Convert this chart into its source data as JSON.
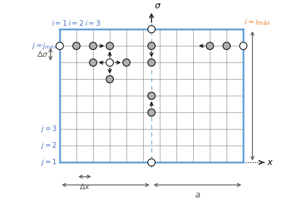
{
  "fig_width": 4.29,
  "fig_height": 2.9,
  "dpi": 100,
  "grid_color": "#888888",
  "border_color": "#5b9bd5",
  "background": "#ffffff",
  "nx": 11,
  "ny": 8,
  "label_color_blue": "#4472c4",
  "label_color_orange": "#ed7d31",
  "node_gray": "#b0b0b0",
  "node_white": "#ffffff",
  "dim_color": "#555555"
}
